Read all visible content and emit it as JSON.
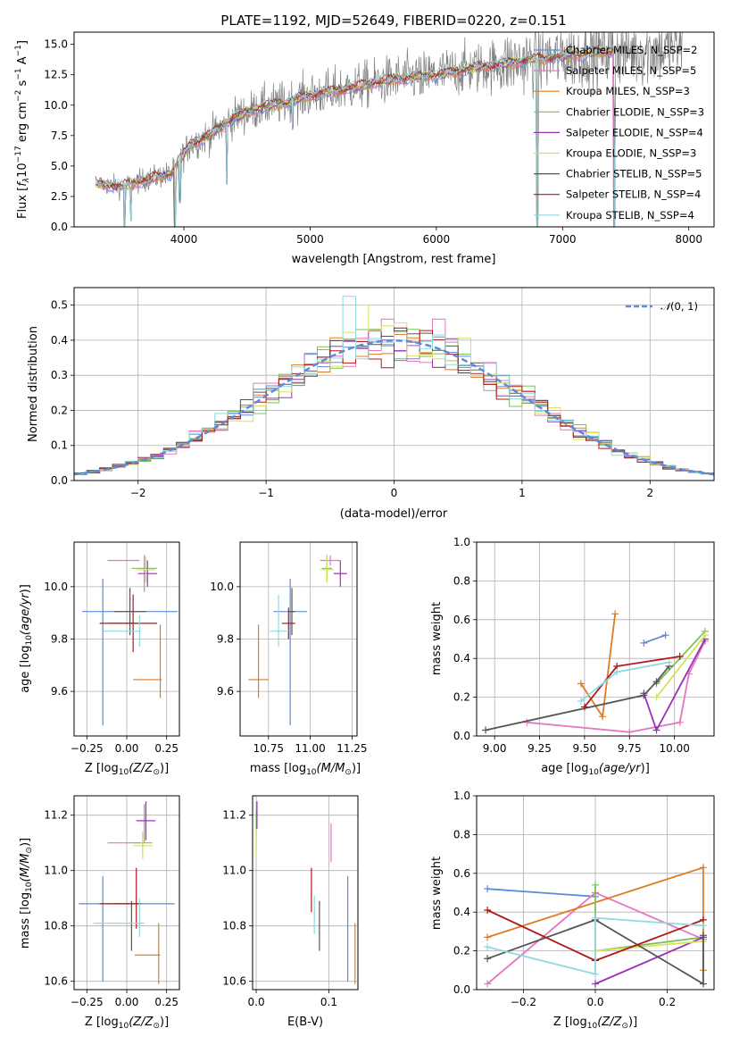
{
  "colors": {
    "Chabrier MILES": "#5b8bd9",
    "Salpeter MILES": "#e377c2",
    "Kroupa MILES": "#e07b1f",
    "Chabrier ELODIE": "#7fbf5a",
    "Salpeter ELODIE": "#9b30b8",
    "Kroupa ELODIE": "#d8e05a",
    "Chabrier STELIB": "#555555",
    "Salpeter STELIB": "#b01818",
    "Kroupa STELIB": "#8fd9df",
    "observed": "#808080"
  },
  "chart_data": [
    {
      "type": "line",
      "title": "PLATE=1192, MJD=52649, FIBERID=0220, z=0.151",
      "xlabel": "wavelength [Angstrom, rest frame]",
      "ylabel": "Flux [f_λ10^-17 erg cm^-2 s^-1 A^-1]",
      "xlim": [
        3130,
        8200
      ],
      "ylim": [
        0,
        16
      ],
      "xticks": [
        "4000",
        "5000",
        "6000",
        "7000",
        "8000"
      ],
      "yticks": [
        "0.0",
        "2.5",
        "5.0",
        "7.5",
        "10.0",
        "12.5",
        "15.0"
      ],
      "legend_position": "upper-right",
      "legend": [
        {
          "name": "Chabrier MILES",
          "nssp": "2"
        },
        {
          "name": "Salpeter MILES",
          "nssp": "5"
        },
        {
          "name": "Kroupa MILES",
          "nssp": "3"
        },
        {
          "name": "Chabrier ELODIE",
          "nssp": "3"
        },
        {
          "name": "Salpeter ELODIE",
          "nssp": "4"
        },
        {
          "name": "Kroupa ELODIE",
          "nssp": "3"
        },
        {
          "name": "Chabrier STELIB",
          "nssp": "5"
        },
        {
          "name": "Salpeter STELIB",
          "nssp": "4"
        },
        {
          "name": "Kroupa STELIB",
          "nssp": "4"
        }
      ],
      "legend_label_format": "{name}, N_SSP={nssp}",
      "continuum": {
        "x": [
          3300,
          3500,
          3700,
          3900,
          4050,
          4200,
          4400,
          4600,
          4800,
          5000,
          5200,
          5400,
          5600,
          5800,
          6000,
          6200,
          6400,
          6600,
          6800,
          7000,
          7200,
          7400,
          7600,
          7800,
          7900
        ],
        "y": [
          3.6,
          3.3,
          3.9,
          4.4,
          6.8,
          7.5,
          9.0,
          9.8,
          10.2,
          10.8,
          11.2,
          11.6,
          12.0,
          12.3,
          12.5,
          12.9,
          13.2,
          13.5,
          13.8,
          14.0,
          14.3,
          14.5,
          14.4,
          14.6,
          14.7
        ]
      },
      "obs_xrange": [
        3330,
        7950
      ],
      "model_xrange": [
        3300,
        7420
      ],
      "dips": [
        [
          3530,
          0
        ],
        [
          3580,
          0.5
        ],
        [
          3930,
          0
        ],
        [
          3968,
          2.0
        ],
        [
          4340,
          3.5
        ],
        [
          4860,
          8.0
        ],
        [
          5175,
          10.0
        ],
        [
          5890,
          11.0
        ],
        [
          6800,
          0
        ],
        [
          7410,
          0
        ]
      ],
      "grid": false
    },
    {
      "type": "histogram",
      "xlabel": "(data-model)/error",
      "ylabel": "Normed distribution",
      "xlim": [
        -2.5,
        2.5
      ],
      "ylim": [
        0,
        0.55
      ],
      "xticks": [
        "−2",
        "−1",
        "0",
        "1",
        "2"
      ],
      "yticks": [
        "0.0",
        "0.1",
        "0.2",
        "0.3",
        "0.4",
        "0.5"
      ],
      "grid": true,
      "bin_width": 0.1,
      "reference_curve": {
        "label": "N(0, 1)",
        "mean": 0,
        "sd": 1,
        "style": "dashed",
        "color": "#5b8bd9"
      },
      "legend_position": "upper-right",
      "outliers": [
        [
          -0.3,
          0.525
        ],
        [
          -0.2,
          0.5
        ],
        [
          0.0,
          0.46
        ],
        [
          0.35,
          0.46
        ],
        [
          -0.3,
          0.335
        ],
        [
          0.3,
          0.42
        ]
      ]
    },
    {
      "type": "scatter",
      "kind": "error-cross",
      "xlabel": "Z [log10(Z/Z⊙)]",
      "ylabel": "age  [log10(age/yr)]",
      "xlim": [
        -0.33,
        0.33
      ],
      "ylim": [
        9.43,
        10.17
      ],
      "xticks": [
        "−0.25",
        "0.00",
        "0.25"
      ],
      "yticks": [
        "9.6",
        "9.8",
        "10.0"
      ],
      "grid": true,
      "points": [
        {
          "series": "Chabrier MILES",
          "x": -0.15,
          "y": 9.75,
          "dx": 0.0,
          "dy": 0.28
        },
        {
          "series": "Chabrier MILES",
          "x": 0.02,
          "y": 9.905,
          "dx": 0.3,
          "dy": 0.0
        },
        {
          "series": "Salpeter MILES",
          "x": -0.02,
          "y": 10.1,
          "dx": 0.1,
          "dy": 0.0
        },
        {
          "series": "Salpeter MILES",
          "x": 0.11,
          "y": 10.05,
          "dx": 0.0,
          "dy": 0.07
        },
        {
          "series": "Kroupa MILES",
          "x": 0.21,
          "y": 9.715,
          "dx": 0.0,
          "dy": 0.14
        },
        {
          "series": "Kroupa MILES",
          "x": 0.13,
          "y": 9.645,
          "dx": 0.09,
          "dy": 0.0
        },
        {
          "series": "Chabrier ELODIE",
          "x": 0.11,
          "y": 10.07,
          "dx": 0.08,
          "dy": 0.05
        },
        {
          "series": "Salpeter ELODIE",
          "x": 0.13,
          "y": 10.05,
          "dx": 0.06,
          "dy": 0.05
        },
        {
          "series": "Kroupa ELODIE",
          "x": 0.12,
          "y": 10.065,
          "dx": 0.06,
          "dy": 0.05
        },
        {
          "series": "Chabrier STELIB",
          "x": 0.02,
          "y": 9.905,
          "dx": 0.1,
          "dy": 0.09
        },
        {
          "series": "Salpeter STELIB",
          "x": 0.04,
          "y": 9.86,
          "dx": 0.15,
          "dy": 0.11
        },
        {
          "series": "Salpeter STELIB",
          "x": -0.05,
          "y": 9.86,
          "dx": 0.12,
          "dy": 0.0
        },
        {
          "series": "Kroupa STELIB",
          "x": -0.03,
          "y": 9.83,
          "dx": 0.12,
          "dy": 0.0
        },
        {
          "series": "Kroupa STELIB",
          "x": 0.08,
          "y": 9.83,
          "dx": 0.0,
          "dy": 0.06
        }
      ]
    },
    {
      "type": "scatter",
      "kind": "error-cross",
      "xlabel": "mass [log10(M/M⊙)]",
      "ylabel": "",
      "xlim": [
        10.58,
        11.28
      ],
      "ylim": [
        9.43,
        10.17
      ],
      "xticks": [
        "10.75",
        "11.00",
        "11.25"
      ],
      "yticks": [
        "9.6",
        "9.8",
        "10.0"
      ],
      "grid": true,
      "points": [
        {
          "series": "Chabrier MILES",
          "x": 10.88,
          "y": 9.75,
          "dx": 0.0,
          "dy": 0.28
        },
        {
          "series": "Chabrier MILES",
          "x": 10.88,
          "y": 9.905,
          "dx": 0.1,
          "dy": 0.0
        },
        {
          "series": "Salpeter MILES",
          "x": 11.12,
          "y": 10.1,
          "dx": 0.06,
          "dy": 0.0
        },
        {
          "series": "Salpeter MILES",
          "x": 11.12,
          "y": 10.1,
          "dx": 0.0,
          "dy": 0.02
        },
        {
          "series": "Kroupa MILES",
          "x": 10.69,
          "y": 9.715,
          "dx": 0.0,
          "dy": 0.14
        },
        {
          "series": "Kroupa MILES",
          "x": 10.69,
          "y": 9.645,
          "dx": 0.06,
          "dy": 0.0
        },
        {
          "series": "Chabrier ELODIE",
          "x": 11.1,
          "y": 10.07,
          "dx": 0.03,
          "dy": 0.05
        },
        {
          "series": "Salpeter ELODIE",
          "x": 11.18,
          "y": 10.05,
          "dx": 0.04,
          "dy": 0.05
        },
        {
          "series": "Kroupa ELODIE",
          "x": 11.1,
          "y": 10.065,
          "dx": 0.04,
          "dy": 0.05
        },
        {
          "series": "Chabrier STELIB",
          "x": 10.89,
          "y": 9.905,
          "dx": 0.02,
          "dy": 0.09
        },
        {
          "series": "Salpeter STELIB",
          "x": 10.87,
          "y": 9.86,
          "dx": 0.04,
          "dy": 0.06
        },
        {
          "series": "Kroupa STELIB",
          "x": 10.81,
          "y": 9.83,
          "dx": 0.05,
          "dy": 0.0
        },
        {
          "series": "Kroupa STELIB",
          "x": 10.81,
          "y": 9.87,
          "dx": 0.0,
          "dy": 0.1
        }
      ]
    },
    {
      "type": "line",
      "xlabel": "age  [log10(age/yr)]",
      "ylabel": "mass weight",
      "xlim": [
        8.9,
        10.22
      ],
      "ylim": [
        0,
        1
      ],
      "xticks": [
        "9.00",
        "9.25",
        "9.50",
        "9.75",
        "10.00"
      ],
      "yticks": [
        "0.0",
        "0.2",
        "0.4",
        "0.6",
        "0.8",
        "1.0"
      ],
      "grid": true,
      "series": [
        {
          "name": "Chabrier MILES",
          "x": [
            9.83,
            9.95
          ],
          "y": [
            0.48,
            0.52
          ]
        },
        {
          "name": "Salpeter MILES",
          "x": [
            9.18,
            9.75,
            10.03,
            10.08,
            10.17
          ],
          "y": [
            0.07,
            0.02,
            0.07,
            0.32,
            0.49
          ]
        },
        {
          "name": "Kroupa MILES",
          "x": [
            9.48,
            9.6,
            9.67
          ],
          "y": [
            0.27,
            0.1,
            0.63
          ]
        },
        {
          "name": "Chabrier ELODIE",
          "x": [
            9.9,
            10.17
          ],
          "y": [
            0.27,
            0.54
          ]
        },
        {
          "name": "Salpeter ELODIE",
          "x": [
            9.83,
            9.9,
            10.17
          ],
          "y": [
            0.22,
            0.03,
            0.5
          ]
        },
        {
          "name": "Kroupa ELODIE",
          "x": [
            9.9,
            10.17
          ],
          "y": [
            0.2,
            0.52
          ]
        },
        {
          "name": "Chabrier STELIB",
          "x": [
            8.95,
            9.83,
            9.9,
            9.97
          ],
          "y": [
            0.03,
            0.21,
            0.28,
            0.36
          ]
        },
        {
          "name": "Salpeter STELIB",
          "x": [
            9.5,
            9.68,
            10.03
          ],
          "y": [
            0.15,
            0.36,
            0.41
          ]
        },
        {
          "name": "Kroupa STELIB",
          "x": [
            9.48,
            9.68,
            9.97
          ],
          "y": [
            0.18,
            0.33,
            0.38
          ]
        }
      ]
    },
    {
      "type": "scatter",
      "kind": "error-cross",
      "xlabel": "Z [log10(Z/Z⊙)]",
      "ylabel": "mass [log10(M/M⊙)]",
      "xlim": [
        -0.33,
        0.33
      ],
      "ylim": [
        10.57,
        11.27
      ],
      "xticks": [
        "−0.25",
        "0.00",
        "0.25"
      ],
      "yticks": [
        "10.6",
        "10.8",
        "11.0",
        "11.2"
      ],
      "grid": true,
      "points": [
        {
          "series": "Chabrier MILES",
          "x": -0.15,
          "y": 10.79,
          "dx": 0.0,
          "dy": 0.19
        },
        {
          "series": "Chabrier MILES",
          "x": 0.0,
          "y": 10.88,
          "dx": 0.3,
          "dy": 0.0
        },
        {
          "series": "Salpeter MILES",
          "x": -0.02,
          "y": 11.1,
          "dx": 0.1,
          "dy": 0.0
        },
        {
          "series": "Salpeter MILES",
          "x": 0.11,
          "y": 11.17,
          "dx": 0.0,
          "dy": 0.07
        },
        {
          "series": "Kroupa MILES",
          "x": 0.2,
          "y": 10.7,
          "dx": 0.0,
          "dy": 0.11
        },
        {
          "series": "Kroupa MILES",
          "x": 0.13,
          "y": 10.695,
          "dx": 0.08,
          "dy": 0.0
        },
        {
          "series": "Chabrier ELODIE",
          "x": 0.1,
          "y": 11.1,
          "dx": 0.06,
          "dy": 0.04
        },
        {
          "series": "Salpeter ELODIE",
          "x": 0.12,
          "y": 11.18,
          "dx": 0.06,
          "dy": 0.07
        },
        {
          "series": "Kroupa ELODIE",
          "x": 0.1,
          "y": 11.09,
          "dx": 0.06,
          "dy": 0.05
        },
        {
          "series": "Chabrier STELIB",
          "x": 0.03,
          "y": 10.8,
          "dx": 0.0,
          "dy": 0.09
        },
        {
          "series": "Chabrier STELIB",
          "x": 0.0,
          "y": 10.88,
          "dx": 0.09,
          "dy": 0.0
        },
        {
          "series": "Salpeter STELIB",
          "x": 0.06,
          "y": 10.9,
          "dx": 0.0,
          "dy": 0.11
        },
        {
          "series": "Salpeter STELIB",
          "x": -0.05,
          "y": 10.88,
          "dx": 0.12,
          "dy": 0.0
        },
        {
          "series": "Kroupa STELIB",
          "x": -0.05,
          "y": 10.81,
          "dx": 0.16,
          "dy": 0.0
        },
        {
          "series": "Kroupa STELIB",
          "x": 0.08,
          "y": 10.83,
          "dx": 0.0,
          "dy": 0.07
        }
      ]
    },
    {
      "type": "scatter",
      "kind": "error-bar",
      "xlabel": "E(B-V)",
      "ylabel": "",
      "xlim": [
        -0.005,
        0.14
      ],
      "ylim": [
        10.57,
        11.27
      ],
      "xticks": [
        "0.0",
        "0.1"
      ],
      "yticks": [
        "10.6",
        "10.8",
        "11.0",
        "11.2"
      ],
      "grid": true,
      "points": [
        {
          "series": "Chabrier MILES",
          "x": 0.126,
          "y": 10.79,
          "dy": 0.19
        },
        {
          "series": "Salpeter MILES",
          "x": 0.103,
          "y": 11.1,
          "dy": 0.07
        },
        {
          "series": "Kroupa MILES",
          "x": 0.136,
          "y": 10.7,
          "dy": 0.11
        },
        {
          "series": "Chabrier ELODIE",
          "x": 0.0,
          "y": 11.15,
          "dy": 0.07
        },
        {
          "series": "Salpeter ELODIE",
          "x": 0.001,
          "y": 11.2,
          "dy": 0.05
        },
        {
          "series": "Kroupa ELODIE",
          "x": 0.0,
          "y": 11.1,
          "dy": 0.05
        },
        {
          "series": "Chabrier STELIB",
          "x": 0.087,
          "y": 10.8,
          "dy": 0.09
        },
        {
          "series": "Salpeter STELIB",
          "x": 0.076,
          "y": 10.93,
          "dy": 0.08
        },
        {
          "series": "Kroupa STELIB",
          "x": 0.08,
          "y": 10.84,
          "dy": 0.07
        }
      ]
    },
    {
      "type": "line",
      "xlabel": "Z [log10(Z/Z⊙)]",
      "ylabel": "mass weight",
      "xlim": [
        -0.33,
        0.33
      ],
      "ylim": [
        0,
        1
      ],
      "xticks": [
        "−0.2",
        "0.0",
        "0.2"
      ],
      "yticks": [
        "0.0",
        "0.2",
        "0.4",
        "0.6",
        "0.8",
        "1.0"
      ],
      "grid": true,
      "series": [
        {
          "name": "Chabrier MILES",
          "x": [
            -0.3,
            0.0
          ],
          "y": [
            0.52,
            0.48
          ]
        },
        {
          "name": "Salpeter MILES",
          "x": [
            -0.3,
            0.0,
            0.3
          ],
          "y": [
            0.03,
            0.5,
            0.26
          ]
        },
        {
          "name": "Kroupa MILES",
          "x": [
            -0.3,
            0.3,
            0.3
          ],
          "y": [
            0.27,
            0.63,
            0.1
          ]
        },
        {
          "name": "Chabrier ELODIE",
          "x": [
            0.0,
            0.0,
            0.3
          ],
          "y": [
            0.54,
            0.2,
            0.27
          ]
        },
        {
          "name": "Salpeter ELODIE",
          "x": [
            0.0,
            0.3
          ],
          "y": [
            0.03,
            0.27
          ]
        },
        {
          "name": "Kroupa ELODIE",
          "x": [
            0.0,
            0.3
          ],
          "y": [
            0.2,
            0.25
          ]
        },
        {
          "name": "Chabrier STELIB",
          "x": [
            -0.3,
            0.0,
            0.3,
            0.3
          ],
          "y": [
            0.16,
            0.36,
            0.03,
            0.28
          ]
        },
        {
          "name": "Salpeter STELIB",
          "x": [
            -0.3,
            0.0,
            0.3
          ],
          "y": [
            0.41,
            0.15,
            0.36
          ]
        },
        {
          "name": "Kroupa STELIB",
          "x": [
            -0.3,
            0.0,
            0.0,
            0.3
          ],
          "y": [
            0.22,
            0.08,
            0.37,
            0.33
          ]
        }
      ]
    }
  ]
}
